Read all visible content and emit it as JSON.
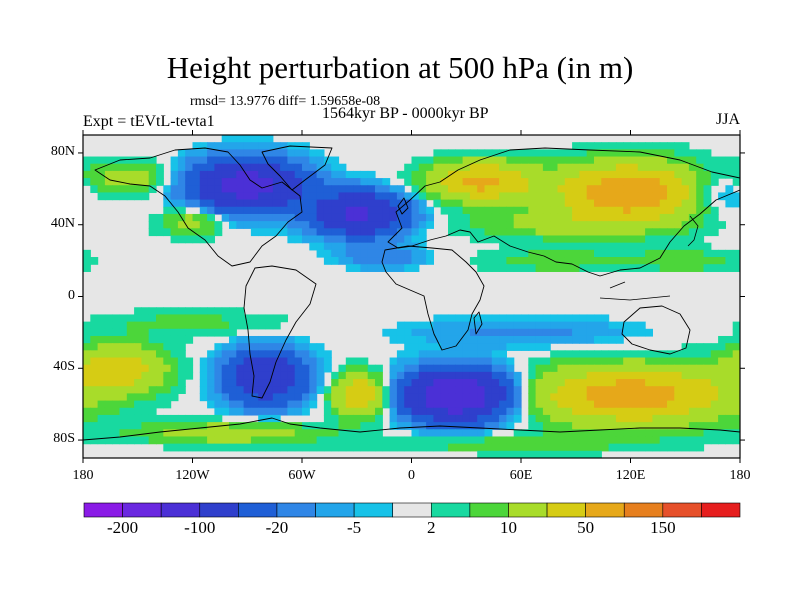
{
  "title": "Height perturbation at 500 hPa (in m)",
  "stats": "rmsd= 13.9776 diff= 1.59658e-08",
  "period": "1564kyr BP - 0000kyr BP",
  "experiment": "Expt = tEVtL-tevta1",
  "season": "JJA",
  "axes": {
    "y_ticks": [
      {
        "label": "80N",
        "lat": 80
      },
      {
        "label": "40N",
        "lat": 40
      },
      {
        "label": "0",
        "lat": 0
      },
      {
        "label": "40S",
        "lat": -40
      },
      {
        "label": "80S",
        "lat": -80
      }
    ],
    "x_ticks": [
      {
        "label": "180",
        "lon": -180
      },
      {
        "label": "120W",
        "lon": -120
      },
      {
        "label": "60W",
        "lon": -60
      },
      {
        "label": "0",
        "lon": 0
      },
      {
        "label": "60E",
        "lon": 60
      },
      {
        "label": "120E",
        "lon": 120
      },
      {
        "label": "180",
        "lon": 180
      }
    ]
  },
  "colorbar": {
    "colors": [
      "#8a1be6",
      "#6a28e0",
      "#4b30d6",
      "#2f3fcc",
      "#1f5fd6",
      "#2f86e6",
      "#23a5ea",
      "#17c2e8",
      "#e6e6e6",
      "#18d9a0",
      "#4cd63a",
      "#a8dc2a",
      "#d6cc14",
      "#e6a81a",
      "#e67f1e",
      "#e6502a",
      "#e61e1e"
    ],
    "labels": [
      {
        "text": "-200",
        "index": 1
      },
      {
        "text": "-100",
        "index": 3
      },
      {
        "text": "-20",
        "index": 5
      },
      {
        "text": "-5",
        "index": 7
      },
      {
        "text": "2",
        "index": 9
      },
      {
        "text": "10",
        "index": 11
      },
      {
        "text": "50",
        "index": 13
      },
      {
        "text": "150",
        "index": 15
      }
    ]
  },
  "field": {
    "background_level": "#e6e6e6",
    "anomalies": [
      {
        "lon": -90,
        "lat": 62,
        "rlon": 30,
        "rlat": 14,
        "amp": -75
      },
      {
        "lon": -28,
        "lat": 46,
        "rlon": 25,
        "rlat": 12,
        "amp": -65
      },
      {
        "lon": 38,
        "lat": 64,
        "rlon": 28,
        "rlat": 11,
        "amp": 45
      },
      {
        "lon": 120,
        "lat": 58,
        "rlon": 40,
        "rlat": 16,
        "amp": 55
      },
      {
        "lon": 168,
        "lat": 58,
        "rlon": 18,
        "rlat": 12,
        "amp": -15
      },
      {
        "lon": -155,
        "lat": 66,
        "rlon": 24,
        "rlat": 9,
        "amp": 18
      },
      {
        "lon": -120,
        "lat": 42,
        "rlon": 18,
        "rlat": 8,
        "amp": 18
      },
      {
        "lon": 80,
        "lat": 40,
        "rlon": 50,
        "rlat": 8,
        "amp": 14
      },
      {
        "lon": -15,
        "lat": 22,
        "rlon": 22,
        "rlat": 6,
        "amp": -14
      },
      {
        "lon": 80,
        "lat": 20,
        "rlon": 40,
        "rlat": 6,
        "amp": 10
      },
      {
        "lon": 150,
        "lat": 20,
        "rlon": 30,
        "rlat": 6,
        "amp": 10
      },
      {
        "lon": -160,
        "lat": -40,
        "rlon": 25,
        "rlat": 13,
        "amp": 35
      },
      {
        "lon": -80,
        "lat": -45,
        "rlon": 22,
        "rlat": 15,
        "amp": -55
      },
      {
        "lon": -28,
        "lat": -55,
        "rlon": 15,
        "rlat": 12,
        "amp": 40
      },
      {
        "lon": 25,
        "lat": -55,
        "rlon": 28,
        "rlat": 14,
        "amp": -95
      },
      {
        "lon": 120,
        "lat": -55,
        "rlon": 55,
        "rlat": 16,
        "amp": 50
      },
      {
        "lon": 60,
        "lat": -20,
        "rlon": 60,
        "rlat": 8,
        "amp": -10
      },
      {
        "lon": -120,
        "lat": -15,
        "rlon": 50,
        "rlat": 7,
        "amp": 8
      },
      {
        "lon": -100,
        "lat": -76,
        "rlon": 50,
        "rlat": 6,
        "amp": 20
      },
      {
        "lon": 50,
        "lat": -82,
        "rlon": 70,
        "rlat": 5,
        "amp": 10
      }
    ]
  }
}
